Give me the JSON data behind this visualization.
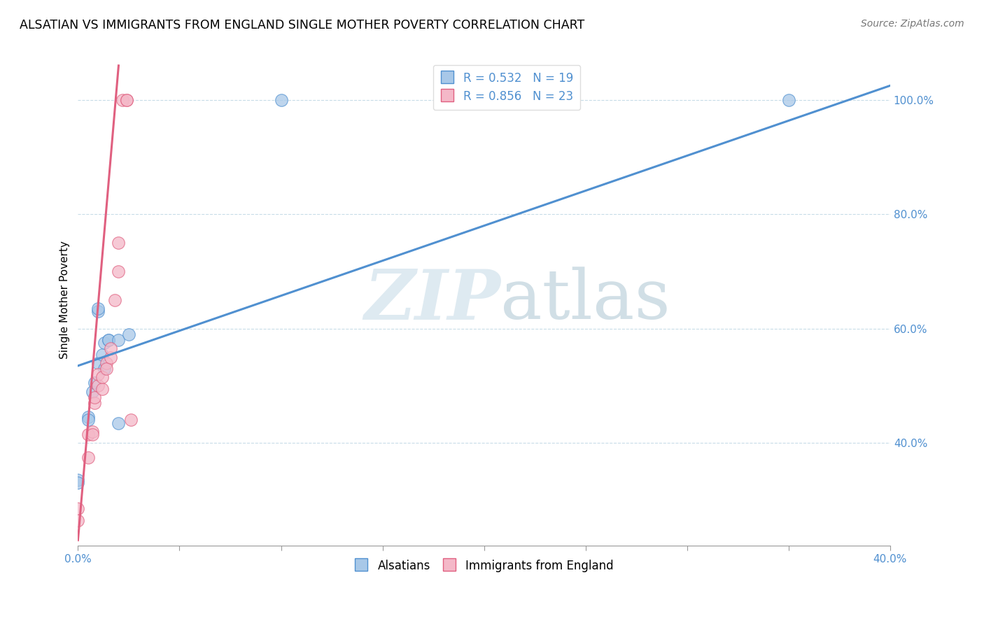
{
  "title": "ALSATIAN VS IMMIGRANTS FROM ENGLAND SINGLE MOTHER POVERTY CORRELATION CHART",
  "source": "Source: ZipAtlas.com",
  "ylabel": "Single Mother Poverty",
  "yticks": [
    0.4,
    0.6,
    0.8,
    1.0
  ],
  "ytick_labels": [
    "40.0%",
    "60.0%",
    "80.0%",
    "100.0%"
  ],
  "blue_color": "#a8c8e8",
  "pink_color": "#f4b8c8",
  "blue_line_color": "#5090d0",
  "pink_line_color": "#e06080",
  "alsatian_x": [
    0.0,
    0.0,
    0.005,
    0.005,
    0.007,
    0.008,
    0.01,
    0.01,
    0.01,
    0.012,
    0.013,
    0.013,
    0.015,
    0.015,
    0.02,
    0.02,
    0.025,
    0.1,
    0.35
  ],
  "alsatian_y": [
    0.335,
    0.33,
    0.445,
    0.44,
    0.49,
    0.505,
    0.63,
    0.635,
    0.54,
    0.555,
    0.53,
    0.575,
    0.58,
    0.58,
    0.58,
    0.435,
    0.59,
    1.0,
    1.0
  ],
  "england_x": [
    0.0,
    0.0,
    0.005,
    0.005,
    0.007,
    0.007,
    0.008,
    0.008,
    0.01,
    0.01,
    0.012,
    0.012,
    0.014,
    0.014,
    0.016,
    0.016,
    0.018,
    0.02,
    0.02,
    0.022,
    0.024,
    0.024,
    0.026
  ],
  "england_y": [
    0.285,
    0.265,
    0.375,
    0.415,
    0.42,
    0.415,
    0.47,
    0.48,
    0.5,
    0.52,
    0.495,
    0.515,
    0.54,
    0.53,
    0.55,
    0.565,
    0.65,
    0.7,
    0.75,
    1.0,
    1.0,
    1.0,
    0.44
  ],
  "blue_trendline_x": [
    0.0,
    0.4
  ],
  "blue_trendline_y": [
    0.535,
    1.025
  ],
  "pink_trendline_x": [
    0.0,
    0.02
  ],
  "pink_trendline_y": [
    0.23,
    1.06
  ],
  "xmin": 0.0,
  "xmax": 0.4,
  "ymin": 0.22,
  "ymax": 1.08,
  "xticks": [
    0.0,
    0.05,
    0.1,
    0.15,
    0.2,
    0.25,
    0.3,
    0.35,
    0.4
  ]
}
